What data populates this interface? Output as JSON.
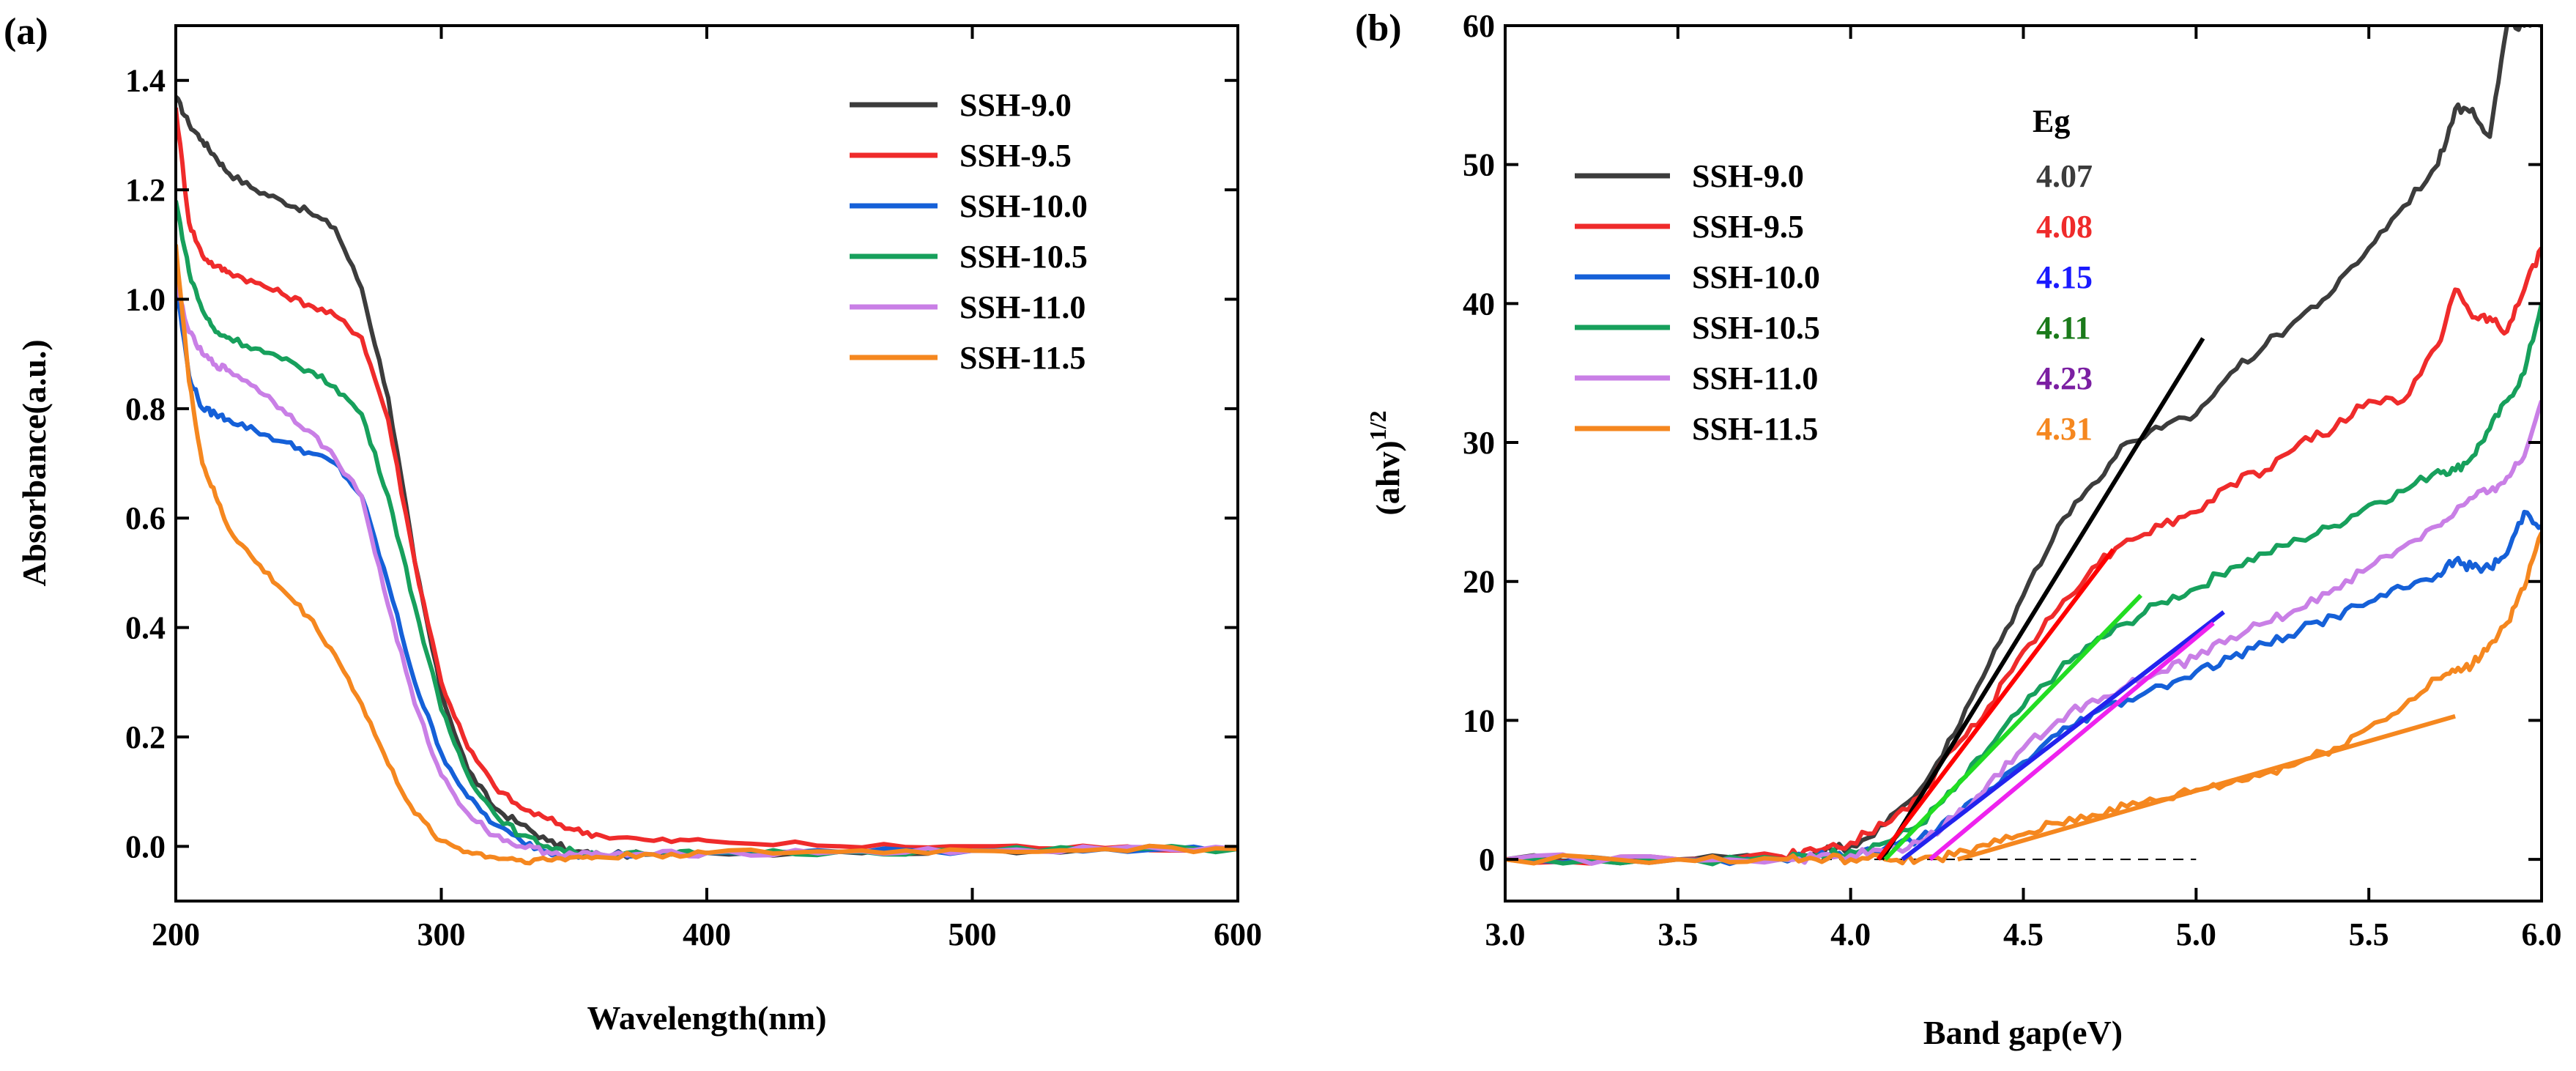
{
  "figure_labels": [
    "(a)",
    "(b)"
  ],
  "chart_data": [
    {
      "type": "line",
      "panel_label": "(a)",
      "title": "",
      "xlabel": "Wavelength(nm)",
      "ylabel": "Absorbance(a.u.)",
      "xlim": [
        200,
        600
      ],
      "ylim": [
        -0.1,
        1.5
      ],
      "xticks": [
        200,
        300,
        400,
        500,
        600
      ],
      "yticks": [
        0.0,
        0.2,
        0.4,
        0.6,
        0.8,
        1.0,
        1.2,
        1.4
      ],
      "xtick_labels": [
        "200",
        "300",
        "400",
        "500",
        "600"
      ],
      "ytick_labels": [
        "0.0",
        "0.2",
        "0.4",
        "0.6",
        "0.8",
        "1.0",
        "1.2",
        "1.4"
      ],
      "legend": {
        "position": "top-right"
      },
      "series": [
        {
          "name": "SSH-9.0",
          "color": "#3c3c3c",
          "x": [
            200,
            205,
            210,
            215,
            220,
            230,
            240,
            250,
            260,
            270,
            280,
            290,
            300,
            310,
            320,
            330,
            340,
            350,
            360,
            380,
            400,
            450,
            500,
            550,
            600
          ],
          "y": [
            1.37,
            1.32,
            1.29,
            1.26,
            1.23,
            1.2,
            1.18,
            1.16,
            1.13,
            1.02,
            0.82,
            0.52,
            0.28,
            0.14,
            0.07,
            0.04,
            0.01,
            -0.01,
            -0.015,
            -0.015,
            -0.012,
            -0.01,
            -0.008,
            -0.005,
            -0.005
          ]
        },
        {
          "name": "SSH-9.5",
          "color": "#ef2b2b",
          "x": [
            200,
            205,
            210,
            215,
            220,
            230,
            240,
            250,
            260,
            270,
            280,
            290,
            300,
            310,
            320,
            330,
            340,
            350,
            360,
            380,
            400,
            450,
            500,
            550,
            600
          ],
          "y": [
            1.35,
            1.14,
            1.08,
            1.06,
            1.05,
            1.03,
            1.01,
            0.99,
            0.97,
            0.93,
            0.78,
            0.52,
            0.3,
            0.18,
            0.11,
            0.07,
            0.05,
            0.03,
            0.02,
            0.01,
            0.01,
            0.0,
            0.0,
            -0.003,
            -0.003
          ]
        },
        {
          "name": "SSH-10.0",
          "color": "#1560d8",
          "x": [
            200,
            205,
            210,
            215,
            220,
            230,
            240,
            250,
            260,
            270,
            280,
            290,
            300,
            310,
            320,
            330,
            340,
            350,
            360,
            380,
            400,
            450,
            500,
            550,
            600
          ],
          "y": [
            1.03,
            0.86,
            0.8,
            0.79,
            0.78,
            0.76,
            0.74,
            0.72,
            0.7,
            0.64,
            0.48,
            0.3,
            0.17,
            0.09,
            0.04,
            0.01,
            -0.01,
            -0.015,
            -0.015,
            -0.015,
            -0.012,
            -0.01,
            -0.008,
            -0.005,
            -0.005
          ]
        },
        {
          "name": "SSH-10.5",
          "color": "#17a05c",
          "x": [
            200,
            205,
            210,
            215,
            220,
            230,
            240,
            250,
            260,
            270,
            280,
            290,
            300,
            310,
            320,
            330,
            340,
            350,
            360,
            380,
            400,
            450,
            500,
            550,
            600
          ],
          "y": [
            1.18,
            1.05,
            0.98,
            0.94,
            0.93,
            0.91,
            0.89,
            0.87,
            0.84,
            0.79,
            0.64,
            0.44,
            0.25,
            0.13,
            0.06,
            0.02,
            0.0,
            -0.01,
            -0.015,
            -0.015,
            -0.012,
            -0.01,
            -0.008,
            -0.005,
            -0.005
          ]
        },
        {
          "name": "SSH-11.0",
          "color": "#c97fe6",
          "x": [
            200,
            205,
            210,
            215,
            220,
            230,
            240,
            250,
            260,
            270,
            280,
            290,
            300,
            310,
            320,
            330,
            340,
            350,
            360,
            380,
            400,
            450,
            500,
            550,
            600
          ],
          "y": [
            1.03,
            0.94,
            0.9,
            0.88,
            0.87,
            0.84,
            0.8,
            0.76,
            0.71,
            0.64,
            0.44,
            0.26,
            0.13,
            0.06,
            0.02,
            0.0,
            -0.01,
            -0.015,
            -0.015,
            -0.015,
            -0.012,
            -0.01,
            -0.008,
            -0.005,
            -0.005
          ]
        },
        {
          "name": "SSH-11.5",
          "color": "#f5871f",
          "x": [
            200,
            205,
            210,
            215,
            220,
            230,
            240,
            250,
            260,
            270,
            280,
            290,
            300,
            310,
            320,
            330,
            340,
            350,
            360,
            380,
            400,
            450,
            500,
            550,
            600
          ],
          "y": [
            1.1,
            0.85,
            0.7,
            0.64,
            0.58,
            0.52,
            0.47,
            0.42,
            0.35,
            0.26,
            0.15,
            0.06,
            0.01,
            -0.01,
            -0.02,
            -0.025,
            -0.025,
            -0.02,
            -0.02,
            -0.015,
            -0.012,
            -0.01,
            -0.008,
            -0.005,
            -0.005
          ]
        }
      ]
    },
    {
      "type": "line",
      "panel_label": "(b)",
      "title": "",
      "xlabel": "Band gap(eV)",
      "ylabel": "(ahv)",
      "ylabel_superscript": "1/2",
      "xlim": [
        3.0,
        6.0
      ],
      "ylim": [
        -3,
        60
      ],
      "xticks": [
        3.0,
        3.5,
        4.0,
        4.5,
        5.0,
        5.5,
        6.0
      ],
      "yticks": [
        0,
        10,
        20,
        30,
        40,
        50,
        60
      ],
      "xtick_labels": [
        "3.0",
        "3.5",
        "4.0",
        "4.5",
        "5.0",
        "5.5",
        "6.0"
      ],
      "ytick_labels": [
        "0",
        "10",
        "20",
        "30",
        "40",
        "50",
        "60"
      ],
      "legend": {
        "position": "top-left",
        "header": "Eg"
      },
      "baseline": {
        "y": 0,
        "x_range": [
          3.0,
          5.0
        ],
        "style": "dashed"
      },
      "series": [
        {
          "name": "SSH-9.0",
          "eg": "4.07",
          "color": "#3c3c3c",
          "eg_color": "#3c3c3c",
          "x": [
            3.0,
            3.5,
            3.8,
            3.9,
            4.0,
            4.1,
            4.2,
            4.3,
            4.4,
            4.5,
            4.6,
            4.7,
            4.8,
            4.9,
            5.0,
            5.1,
            5.2,
            5.3,
            5.4,
            5.5,
            5.6,
            5.7,
            5.75,
            5.8,
            5.85,
            5.9,
            5.95,
            6.0
          ],
          "y": [
            0,
            0,
            0.2,
            0.5,
            1,
            2.5,
            5,
            9,
            14,
            19,
            24,
            27,
            30,
            31,
            32,
            35,
            37,
            39,
            41,
            44,
            47,
            50,
            54,
            54,
            52,
            60,
            60,
            60
          ]
        },
        {
          "name": "SSH-9.5",
          "eg": "4.08",
          "color": "#ef2b2b",
          "eg_color": "#ef2b2b",
          "x": [
            3.0,
            3.5,
            3.8,
            3.9,
            4.0,
            4.1,
            4.2,
            4.3,
            4.4,
            4.5,
            4.6,
            4.7,
            4.8,
            4.9,
            5.0,
            5.1,
            5.2,
            5.3,
            5.4,
            5.5,
            5.6,
            5.7,
            5.75,
            5.8,
            5.85,
            5.9,
            5.95,
            6.0
          ],
          "y": [
            0,
            0,
            0.2,
            0.6,
            1.2,
            2.5,
            4.5,
            8,
            11,
            15,
            18,
            21,
            23,
            24,
            25,
            27,
            28,
            30,
            31,
            33,
            33,
            37,
            41,
            39,
            39,
            38,
            41,
            44
          ]
        },
        {
          "name": "SSH-10.0",
          "eg": "4.15",
          "color": "#1560d8",
          "eg_color": "#1a1aff",
          "x": [
            3.0,
            3.5,
            3.8,
            3.9,
            4.0,
            4.1,
            4.2,
            4.3,
            4.4,
            4.5,
            4.6,
            4.7,
            4.8,
            4.9,
            5.0,
            5.1,
            5.2,
            5.3,
            5.4,
            5.5,
            5.6,
            5.7,
            5.75,
            5.8,
            5.85,
            5.9,
            5.95,
            6.0
          ],
          "y": [
            0,
            0,
            0,
            0.2,
            0.4,
            0.8,
            1.5,
            3,
            5,
            7,
            9,
            10.5,
            11.5,
            12.5,
            13.5,
            14.5,
            15.5,
            16.5,
            17.5,
            18.5,
            19.5,
            20.5,
            21.5,
            21,
            21,
            22,
            25,
            24
          ]
        },
        {
          "name": "SSH-10.5",
          "eg": "4.11",
          "color": "#17a05c",
          "eg_color": "#1a7a1a",
          "x": [
            3.0,
            3.5,
            3.8,
            3.9,
            4.0,
            4.1,
            4.2,
            4.3,
            4.4,
            4.5,
            4.6,
            4.7,
            4.8,
            4.9,
            5.0,
            5.1,
            5.2,
            5.3,
            5.4,
            5.5,
            5.6,
            5.7,
            5.75,
            5.8,
            5.85,
            5.9,
            5.95,
            6.0
          ],
          "y": [
            0,
            0,
            0,
            0.3,
            0.6,
            1.2,
            2.5,
            5,
            8,
            11,
            13.5,
            15.5,
            17,
            18.5,
            19.5,
            21,
            22,
            23,
            24,
            25.5,
            26.5,
            28,
            28,
            29,
            31,
            33,
            35,
            40
          ]
        },
        {
          "name": "SSH-11.0",
          "eg": "4.23",
          "color": "#c97fe6",
          "eg_color": "#7b1fa2",
          "x": [
            3.0,
            3.5,
            3.8,
            3.9,
            4.0,
            4.1,
            4.2,
            4.3,
            4.4,
            4.5,
            4.6,
            4.7,
            4.8,
            4.9,
            5.0,
            5.1,
            5.2,
            5.3,
            5.4,
            5.5,
            5.6,
            5.7,
            5.75,
            5.8,
            5.85,
            5.9,
            5.95,
            6.0
          ],
          "y": [
            0,
            0,
            0,
            0.1,
            0.3,
            0.6,
            1.2,
            3,
            5.5,
            8,
            10,
            11.5,
            12.5,
            13.5,
            14.5,
            16,
            17,
            18,
            19.5,
            21,
            22.5,
            24,
            25,
            26,
            26.5,
            27.5,
            29,
            33
          ]
        },
        {
          "name": "SSH-11.5",
          "eg": "4.31",
          "color": "#f5871f",
          "eg_color": "#f5871f",
          "x": [
            3.0,
            3.5,
            3.8,
            3.9,
            4.0,
            4.1,
            4.2,
            4.3,
            4.4,
            4.5,
            4.6,
            4.7,
            4.8,
            4.9,
            5.0,
            5.1,
            5.2,
            5.3,
            5.4,
            5.5,
            5.6,
            5.7,
            5.75,
            5.8,
            5.85,
            5.9,
            5.95,
            6.0
          ],
          "y": [
            0,
            0,
            0,
            0,
            0,
            0,
            0,
            0.3,
            1,
            1.8,
            2.6,
            3.2,
            3.8,
            4.3,
            5,
            5.5,
            6.2,
            7,
            8,
            9.5,
            11,
            13,
            13.5,
            14,
            15.5,
            17,
            19.5,
            23.5
          ]
        }
      ],
      "fit_lines": [
        {
          "name": "SSH-9.0 fit",
          "color": "#000000",
          "x": [
            4.09,
            5.02
          ],
          "y": [
            0,
            37.5
          ]
        },
        {
          "name": "SSH-9.5 fit",
          "color": "#ff0000",
          "x": [
            4.08,
            4.76
          ],
          "y": [
            0,
            22.3
          ]
        },
        {
          "name": "SSH-10.5 fit",
          "color": "#22dd22",
          "x": [
            4.1,
            4.84
          ],
          "y": [
            0,
            19
          ]
        },
        {
          "name": "SSH-10.0 fit",
          "color": "#2222ee",
          "x": [
            4.15,
            5.08
          ],
          "y": [
            0,
            17.8
          ]
        },
        {
          "name": "SSH-11.0 fit",
          "color": "#ee22ee",
          "x": [
            4.23,
            5.05
          ],
          "y": [
            0,
            17
          ]
        },
        {
          "name": "SSH-11.5 fit",
          "color": "#f5871f",
          "x": [
            4.31,
            5.75
          ],
          "y": [
            0,
            10.3
          ]
        }
      ]
    }
  ]
}
